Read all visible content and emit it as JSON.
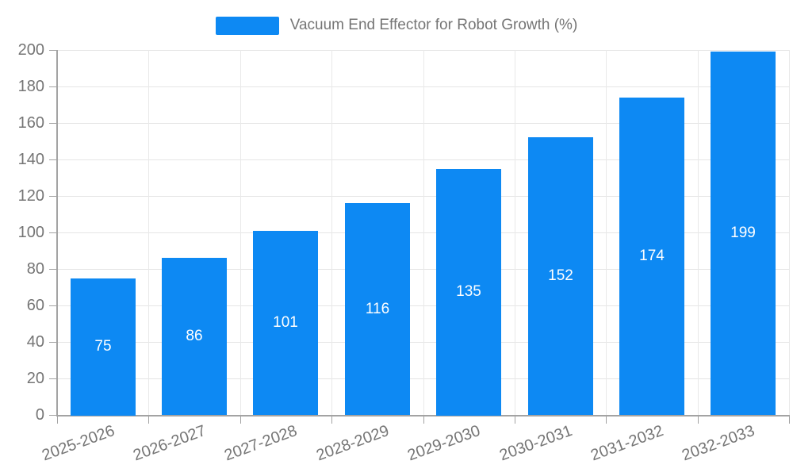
{
  "legend": {
    "label": "Vacuum End Effector for Robot Growth (%)"
  },
  "chart_data": {
    "type": "bar",
    "title": "Vacuum End Effector for Robot Growth (%)",
    "categories": [
      "2025-2026",
      "2026-2027",
      "2027-2028",
      "2028-2029",
      "2029-2030",
      "2030-2031",
      "2031-2032",
      "2032-2033"
    ],
    "series": [
      {
        "name": "Vacuum End Effector for Robot Growth (%)",
        "values": [
          75,
          86,
          101,
          116,
          135,
          152,
          174,
          199
        ]
      }
    ],
    "value_labels": [
      "75",
      "86",
      "101",
      "116",
      "135",
      "152",
      "174",
      "199"
    ],
    "xlabel": "",
    "ylabel": "",
    "ylim": [
      0,
      200
    ],
    "ytick_step": 20,
    "yticks": [
      0,
      20,
      40,
      60,
      80,
      100,
      120,
      140,
      160,
      180,
      200
    ],
    "grid": "horizontal and vertical light gray",
    "legend_position": "top center",
    "x_label_rotation_deg": -20,
    "colors": {
      "bar": "#0d89f3",
      "value_label": "#ffffff",
      "axis_text": "#757575",
      "axis_line": "#a3a3a3",
      "gridline": "#e5e5e5",
      "background": "#ffffff"
    }
  }
}
